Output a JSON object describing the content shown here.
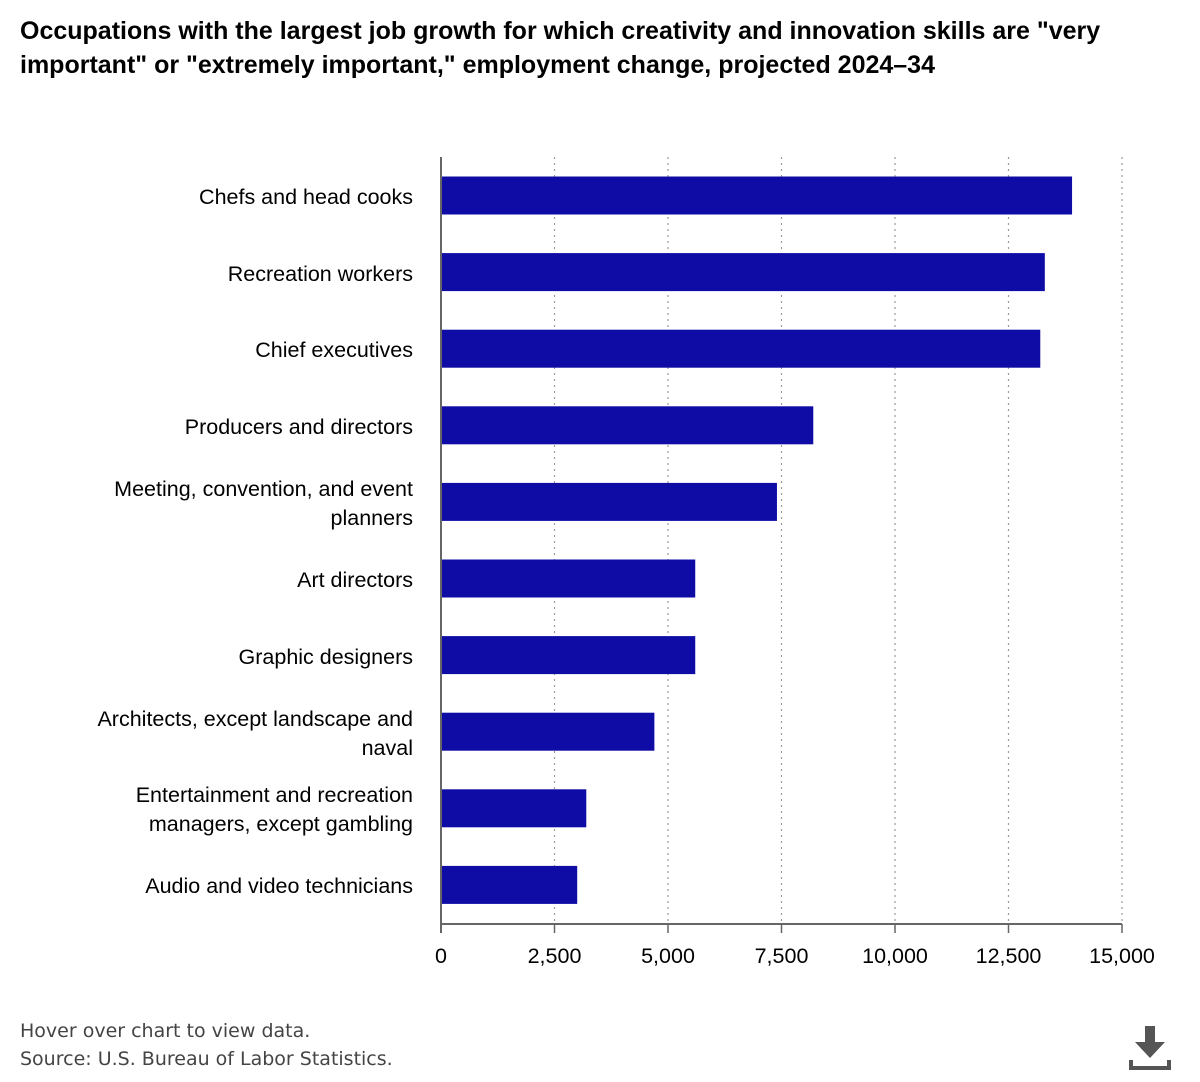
{
  "title": "Occupations with the largest job growth for which creativity and innovation skills are \"very important\" or \"extremely important,\" employment change, projected 2024–34",
  "footer": {
    "hover_note": "Hover over chart to view data.",
    "source": "Source: U.S. Bureau of Labor Statistics."
  },
  "download_icon": "download-icon",
  "chart_data": {
    "type": "bar",
    "orientation": "horizontal",
    "categories": [
      "Chefs and head cooks",
      "Recreation workers",
      "Chief executives",
      "Producers and directors",
      "Meeting, convention, and event planners",
      "Art directors",
      "Graphic designers",
      "Architects, except landscape and naval",
      "Entertainment and recreation managers, except gambling",
      "Audio and video technicians"
    ],
    "category_label_lines": [
      [
        "Chefs and head cooks"
      ],
      [
        "Recreation workers"
      ],
      [
        "Chief executives"
      ],
      [
        "Producers and directors"
      ],
      [
        "Meeting, convention, and event",
        "planners"
      ],
      [
        "Art directors"
      ],
      [
        "Graphic designers"
      ],
      [
        "Architects, except landscape and",
        "naval"
      ],
      [
        "Entertainment and recreation",
        "managers, except gambling"
      ],
      [
        "Audio and video technicians"
      ]
    ],
    "values": [
      13900,
      13300,
      13200,
      8200,
      7400,
      5600,
      5600,
      4700,
      3200,
      3000
    ],
    "xlim": [
      0,
      15000
    ],
    "xticks": [
      0,
      2500,
      5000,
      7500,
      10000,
      12500,
      15000
    ],
    "xtick_labels": [
      "0",
      "2,500",
      "5,000",
      "7,500",
      "10,000",
      "12,500",
      "15,000"
    ],
    "grid": "vertical dotted",
    "bar_color": "#0f0ca6",
    "title": "Occupations with the largest job growth for which creativity and innovation skills are \"very important\" or \"extremely important,\" employment change, projected 2024–34",
    "xlabel": "",
    "ylabel": ""
  }
}
